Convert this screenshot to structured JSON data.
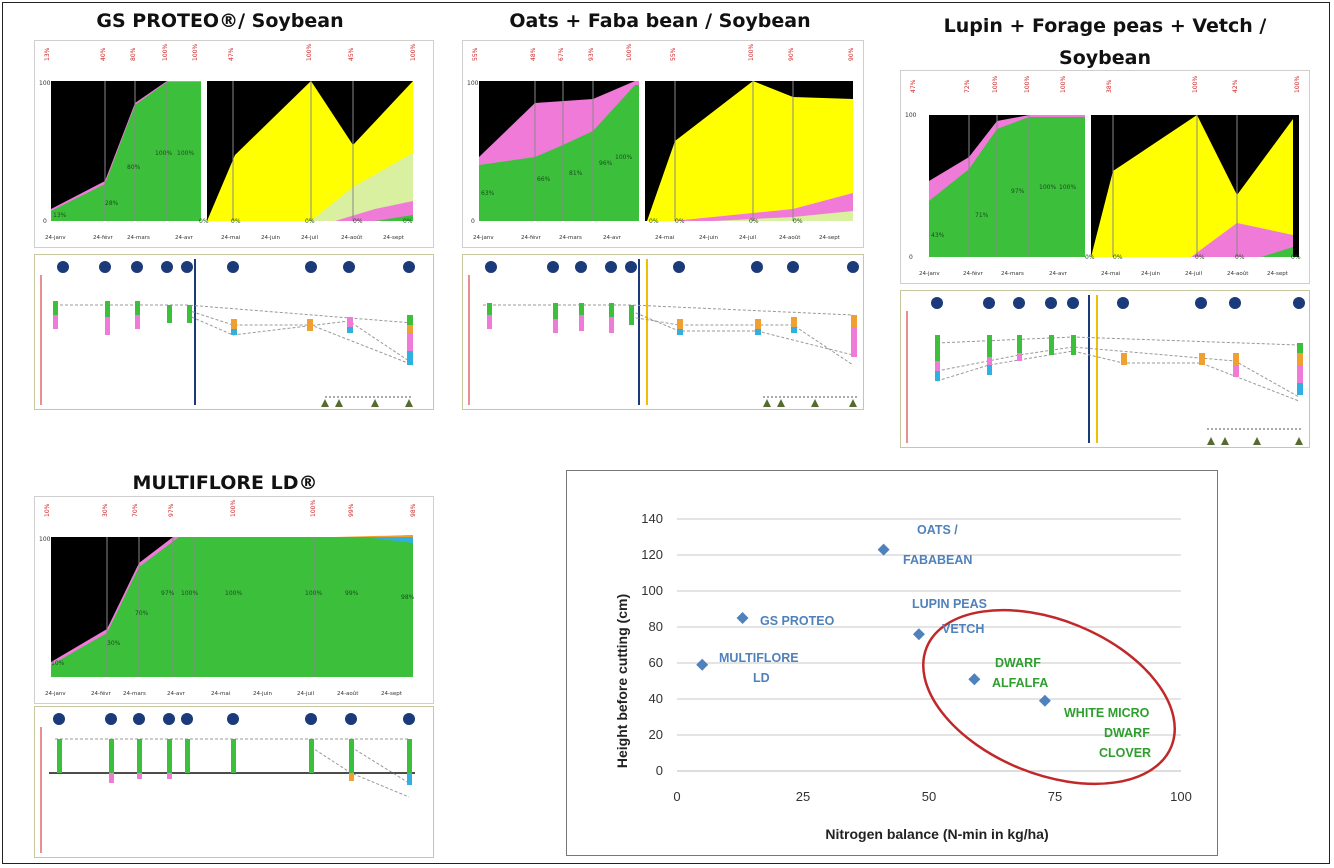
{
  "titles": {
    "gs": "GS PROTEO®/ Soybean",
    "oats": "Oats + Faba bean / Soybean",
    "lupin": "Lupin + Forage peas + Vetch / Soybean",
    "multiflore": "MULTIFLORE LD®"
  },
  "colors": {
    "black": "#000000",
    "green": "#3cc03c",
    "pink": "#f07ad8",
    "yellow": "#ffff00",
    "lightgreen": "#d8f0a0",
    "orange": "#f0a030",
    "cyan": "#30b0e0",
    "blue": "#4f81bd",
    "annotation_green": "#2e9e2e",
    "circle_red": "#c0282a"
  },
  "chart_data": [
    {
      "type": "area",
      "id": "gs",
      "x": [
        "24-janv",
        "24-févr",
        "24-mars",
        "24-avr",
        "24-mai",
        "24-juin",
        "24-juil",
        "24-août",
        "24-sept"
      ]
    },
    {
      "type": "area",
      "id": "oats",
      "x": [
        "24-janv",
        "24-févr",
        "24-mars",
        "24-avr",
        "24-mai",
        "24-juin",
        "24-juil",
        "24-août",
        "24-sept"
      ]
    },
    {
      "type": "area",
      "id": "lupin",
      "x": [
        "24-janv",
        "24-févr",
        "24-mars",
        "24-avr",
        "24-mai",
        "24-juin",
        "24-juil",
        "24-août",
        "24-sept"
      ]
    },
    {
      "type": "area",
      "id": "multiflore",
      "x": [
        "24-janv",
        "24-févr",
        "24-mars",
        "24-avr",
        "24-mai",
        "24-juin",
        "24-juil",
        "24-août",
        "24-sept"
      ],
      "labels": [
        "10%",
        "30%",
        "70%",
        "97%",
        "100%",
        "100%",
        "100%",
        "99%",
        "98%"
      ]
    },
    {
      "type": "scatter",
      "id": "nitrogen-height",
      "xlabel": "Nitrogen balance (N-min in kg/ha)",
      "ylabel": "Height before cutting (cm)",
      "xlim": [
        0,
        100
      ],
      "ylim": [
        0,
        140
      ],
      "xticks": [
        "0",
        "25",
        "50",
        "75",
        "100"
      ],
      "yticks": [
        "0",
        "20",
        "40",
        "60",
        "80",
        "100",
        "120",
        "140"
      ],
      "grid": true,
      "points": [
        {
          "label": "MULTIFLORE LD",
          "x": 5,
          "y": 59
        },
        {
          "label": "GS PROTEO",
          "x": 13,
          "y": 85
        },
        {
          "label": "OATS / FABABEAN",
          "x": 41,
          "y": 123
        },
        {
          "label": "LUPIN PEAS VETCH",
          "x": 48,
          "y": 76
        },
        {
          "label": "DWARF ALFALFA",
          "x": 59,
          "y": 51
        },
        {
          "label": "WHITE MICRO DWARF CLOVER",
          "x": 73,
          "y": 39
        }
      ],
      "annotations": {
        "multiflore_1": "MULTIFLORE",
        "multiflore_2": "LD",
        "gs": "GS PROTEO",
        "oats_1": "OATS /",
        "oats_2": "FABABEAN",
        "lupin_1": "LUPIN PEAS",
        "lupin_2": "VETCH",
        "alfalfa_1": "DWARF",
        "alfalfa_2": "ALFALFA",
        "clover_1": "WHITE MICRO",
        "clover_2": "DWARF",
        "clover_3": "CLOVER"
      }
    }
  ]
}
